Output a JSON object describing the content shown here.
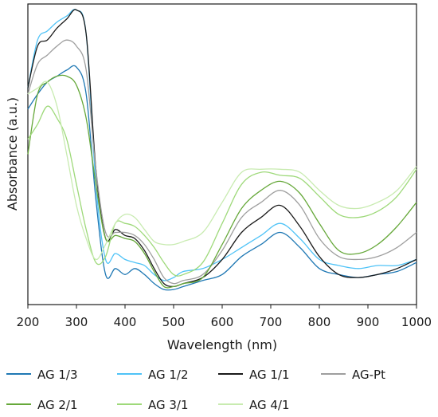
{
  "chart_data": {
    "type": "line",
    "xlabel": "Wavelength (nm)",
    "ylabel": "Absorbance (a.u.)",
    "xlim": [
      200,
      1000
    ],
    "x_ticks": [
      200,
      300,
      400,
      500,
      600,
      700,
      800,
      900,
      1000
    ],
    "ylim": [
      0,
      1
    ],
    "y_ticks_shown": false,
    "grid": false,
    "legend_position": "bottom",
    "x": [
      200,
      220,
      240,
      260,
      280,
      300,
      320,
      340,
      360,
      380,
      400,
      420,
      440,
      460,
      480,
      500,
      520,
      560,
      600,
      640,
      680,
      720,
      760,
      800,
      840,
      880,
      920,
      960,
      1000
    ],
    "series": [
      {
        "name": "AG 1/3",
        "color": "#1f78b4",
        "values": [
          0.65,
          0.7,
          0.74,
          0.76,
          0.78,
          0.79,
          0.7,
          0.35,
          0.1,
          0.12,
          0.1,
          0.12,
          0.1,
          0.07,
          0.05,
          0.05,
          0.06,
          0.08,
          0.1,
          0.16,
          0.2,
          0.24,
          0.19,
          0.12,
          0.1,
          0.09,
          0.1,
          0.11,
          0.14
        ]
      },
      {
        "name": "AG 1/2",
        "color": "#4fc3f7",
        "values": [
          0.72,
          0.88,
          0.91,
          0.94,
          0.96,
          0.98,
          0.9,
          0.4,
          0.15,
          0.17,
          0.15,
          0.14,
          0.13,
          0.1,
          0.08,
          0.09,
          0.11,
          0.12,
          0.15,
          0.19,
          0.23,
          0.27,
          0.22,
          0.15,
          0.13,
          0.12,
          0.13,
          0.13,
          0.15
        ]
      },
      {
        "name": "AG 1/1",
        "color": "#1a1a1a",
        "values": [
          0.72,
          0.86,
          0.88,
          0.92,
          0.95,
          0.98,
          0.9,
          0.45,
          0.22,
          0.25,
          0.23,
          0.22,
          0.18,
          0.12,
          0.07,
          0.06,
          0.07,
          0.09,
          0.15,
          0.24,
          0.29,
          0.33,
          0.26,
          0.16,
          0.1,
          0.09,
          0.1,
          0.12,
          0.15
        ]
      },
      {
        "name": "AG-Pt",
        "color": "#9e9e9e",
        "values": [
          0.7,
          0.8,
          0.83,
          0.86,
          0.88,
          0.86,
          0.78,
          0.45,
          0.24,
          0.24,
          0.24,
          0.23,
          0.2,
          0.15,
          0.09,
          0.07,
          0.08,
          0.1,
          0.18,
          0.29,
          0.34,
          0.38,
          0.33,
          0.22,
          0.16,
          0.15,
          0.16,
          0.19,
          0.24
        ]
      },
      {
        "name": "AG 2/1",
        "color": "#66a83a",
        "values": [
          0.5,
          0.7,
          0.74,
          0.76,
          0.76,
          0.73,
          0.62,
          0.4,
          0.22,
          0.23,
          0.22,
          0.21,
          0.17,
          0.11,
          0.06,
          0.06,
          0.07,
          0.09,
          0.2,
          0.32,
          0.38,
          0.41,
          0.37,
          0.27,
          0.18,
          0.17,
          0.2,
          0.26,
          0.34
        ]
      },
      {
        "name": "AG 3/1",
        "color": "#9ed97a",
        "values": [
          0.55,
          0.6,
          0.66,
          0.62,
          0.55,
          0.4,
          0.25,
          0.14,
          0.16,
          0.27,
          0.27,
          0.26,
          0.23,
          0.19,
          0.14,
          0.1,
          0.1,
          0.14,
          0.27,
          0.4,
          0.44,
          0.43,
          0.42,
          0.36,
          0.3,
          0.29,
          0.31,
          0.36,
          0.45
        ]
      },
      {
        "name": "AG 4/1",
        "color": "#c8ebb0",
        "values": [
          0.7,
          0.72,
          0.74,
          0.66,
          0.5,
          0.33,
          0.22,
          0.15,
          0.2,
          0.27,
          0.3,
          0.29,
          0.25,
          0.21,
          0.2,
          0.2,
          0.21,
          0.24,
          0.34,
          0.44,
          0.45,
          0.45,
          0.44,
          0.38,
          0.33,
          0.32,
          0.34,
          0.38,
          0.46
        ]
      }
    ]
  }
}
